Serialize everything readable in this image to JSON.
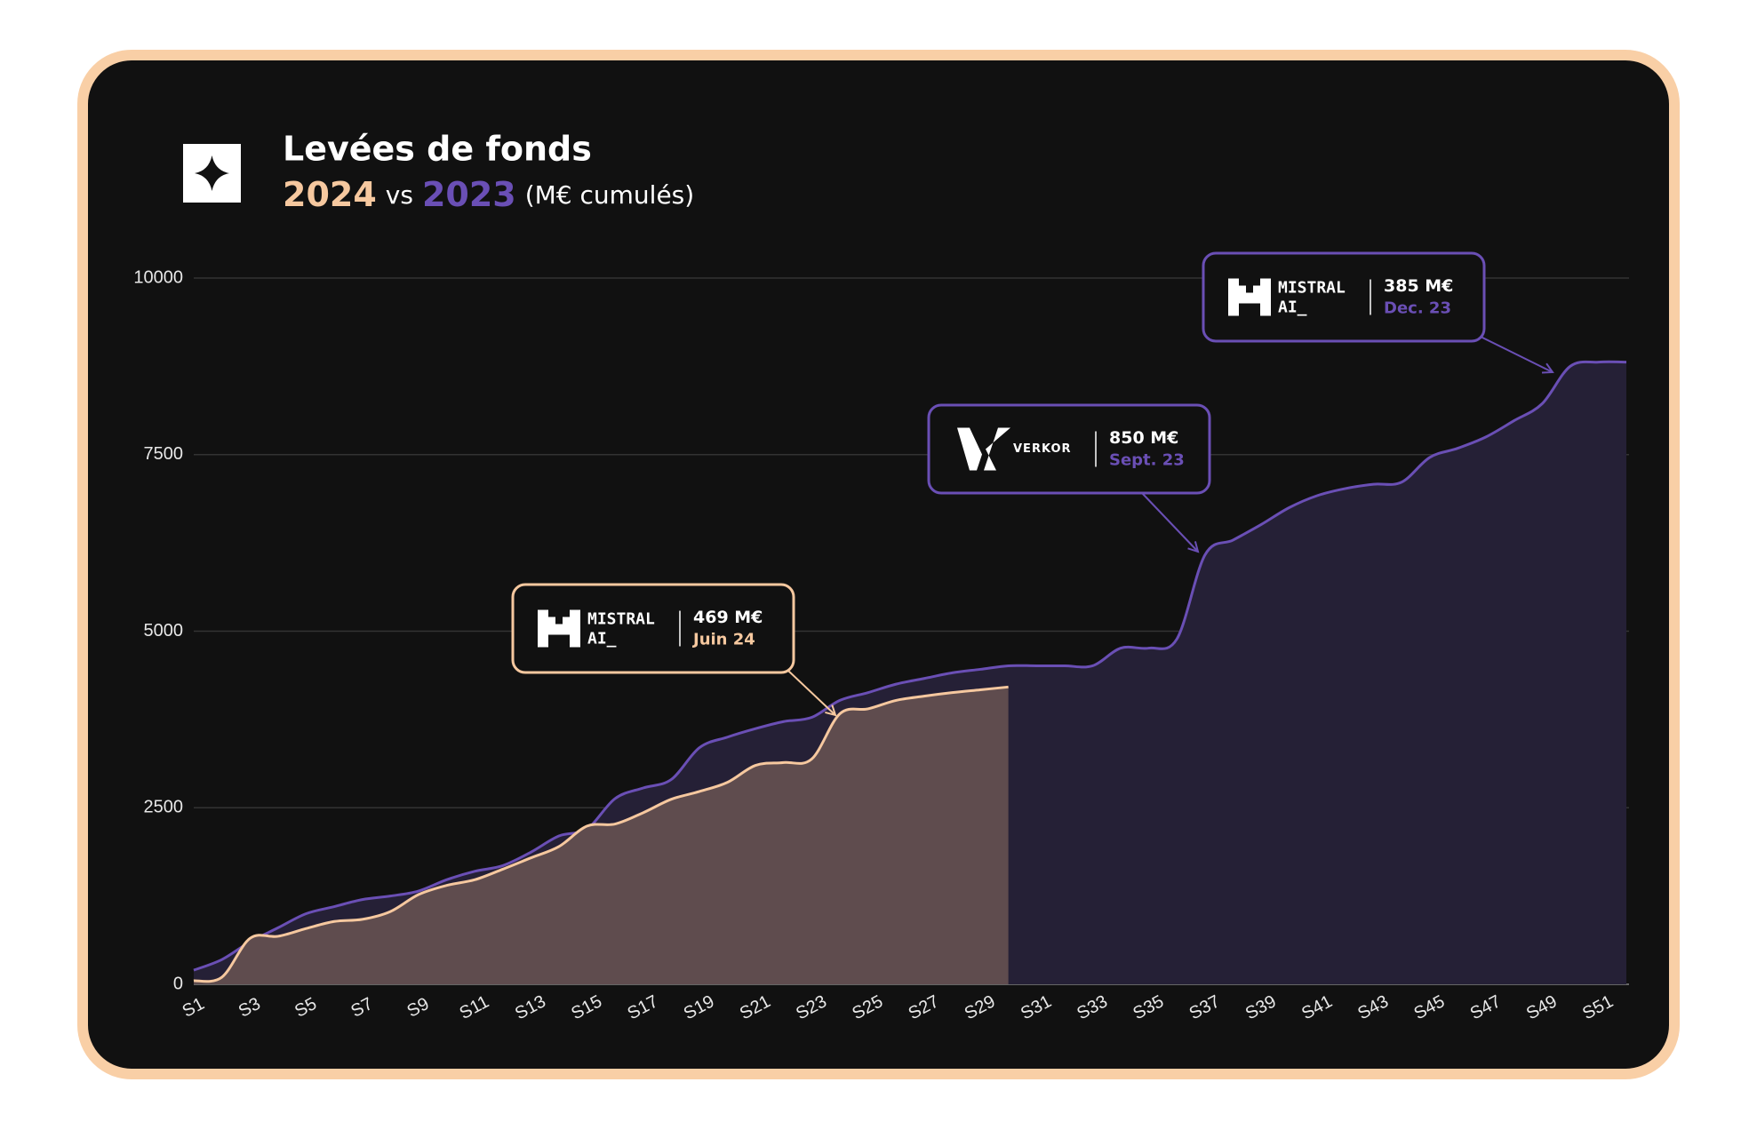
{
  "chart_data": {
    "type": "area",
    "title": "Levées de fonds",
    "subtitle_vs": "vs",
    "subtitle_unit": "(M€ cumulés)",
    "categories": [
      "S1",
      null,
      "S3",
      null,
      "S5",
      null,
      "S7",
      null,
      "S9",
      null,
      "S11",
      null,
      "S13",
      null,
      "S15",
      null,
      "S17",
      null,
      "S19",
      null,
      "S21",
      null,
      "S23",
      null,
      "S25",
      null,
      "S27",
      null,
      "S29",
      null,
      "S31",
      null,
      "S33",
      null,
      "S35",
      null,
      "S37",
      null,
      "S39",
      null,
      "S41",
      null,
      "S43",
      null,
      "S45",
      null,
      "S47",
      null,
      "S49",
      null,
      "S51",
      null
    ],
    "series": [
      {
        "name": "2023",
        "color": "#6a4fb5",
        "fill": "#252036",
        "values": [
          200,
          350,
          600,
          800,
          1000,
          1100,
          1200,
          1250,
          1320,
          1480,
          1600,
          1680,
          1870,
          2100,
          2200,
          2630,
          2780,
          2900,
          3350,
          3500,
          3620,
          3720,
          3780,
          4020,
          4130,
          4250,
          4330,
          4410,
          4460,
          4510,
          4510,
          4510,
          4510,
          4760,
          4760,
          4890,
          6080,
          6290,
          6510,
          6750,
          6920,
          7020,
          7080,
          7110,
          7460,
          7590,
          7750,
          7980,
          8220,
          8750,
          8810,
          8810
        ]
      },
      {
        "name": "2024",
        "color": "#f6c89f",
        "fill": "#5f4c4e",
        "values": [
          50,
          100,
          650,
          680,
          790,
          890,
          920,
          1030,
          1270,
          1400,
          1480,
          1630,
          1790,
          1950,
          2240,
          2270,
          2430,
          2620,
          2730,
          2860,
          3100,
          3140,
          3190,
          3830,
          3900,
          4020,
          4080,
          4130,
          4170,
          4210,
          null,
          null,
          null,
          null,
          null,
          null,
          null,
          null,
          null,
          null,
          null,
          null,
          null,
          null,
          null,
          null,
          null,
          null,
          null,
          null,
          null,
          null
        ]
      }
    ],
    "ylim": [
      0,
      10000
    ],
    "yticks": [
      0,
      2500,
      5000,
      7500,
      10000
    ],
    "grid": true,
    "annotations": [
      {
        "logo": [
          "MISTRAL",
          "AI_"
        ],
        "amount": "385 M€",
        "date": "Dec. 23",
        "color": "#6a4fb5"
      },
      {
        "logo": [
          "VERKOR"
        ],
        "amount": "850 M€",
        "date": "Sept. 23",
        "color": "#6a4fb5"
      },
      {
        "logo": [
          "MISTRAL",
          "AI_"
        ],
        "amount": "469 M€",
        "date": "Juin 24",
        "color": "#f6c89f"
      }
    ]
  }
}
